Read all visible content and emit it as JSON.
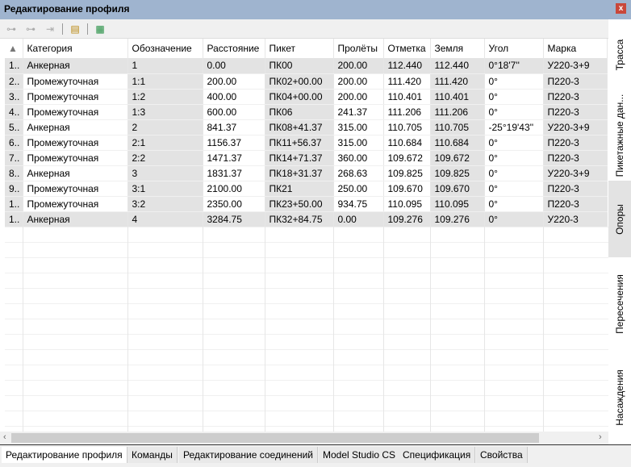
{
  "window": {
    "title": "Редактирование профиля",
    "close_label": "x"
  },
  "toolbar": {
    "icons": [
      "add-branch-icon",
      "insert-branch-icon",
      "remove-branch-icon",
      "properties-icon",
      "refresh-table-icon"
    ]
  },
  "table": {
    "sort_indicator": "▲",
    "columns": [
      "Категория",
      "Обозначение",
      "Расстояние",
      "Пикет",
      "Пролёты",
      "Отметка",
      "Земля",
      "Угол",
      "Марка"
    ],
    "rows": [
      [
        "1..",
        "Анкерная",
        "1",
        "0.00",
        "ПК00",
        "200.00",
        "112.440",
        "112.440",
        "0°18'7''",
        "У220-3+9"
      ],
      [
        "2..",
        "Промежуточная",
        "1:1",
        "200.00",
        "ПК02+00.00",
        "200.00",
        "111.420",
        "111.420",
        "0°",
        "П220-3"
      ],
      [
        "3..",
        "Промежуточная",
        "1:2",
        "400.00",
        "ПК04+00.00",
        "200.00",
        "110.401",
        "110.401",
        "0°",
        "П220-3"
      ],
      [
        "4..",
        "Промежуточная",
        "1:3",
        "600.00",
        "ПК06",
        "241.37",
        "111.206",
        "111.206",
        "0°",
        "П220-3"
      ],
      [
        "5..",
        "Анкерная",
        "2",
        "841.37",
        "ПК08+41.37",
        "315.00",
        "110.705",
        "110.705",
        "-25°19'43''",
        "У220-3+9"
      ],
      [
        "6..",
        "Промежуточная",
        "2:1",
        "1156.37",
        "ПК11+56.37",
        "315.00",
        "110.684",
        "110.684",
        "0°",
        "П220-3"
      ],
      [
        "7..",
        "Промежуточная",
        "2:2",
        "1471.37",
        "ПК14+71.37",
        "360.00",
        "109.672",
        "109.672",
        "0°",
        "П220-3"
      ],
      [
        "8..",
        "Анкерная",
        "3",
        "1831.37",
        "ПК18+31.37",
        "268.63",
        "109.825",
        "109.825",
        "0°",
        "У220-3+9"
      ],
      [
        "9..",
        "Промежуточная",
        "3:1",
        "2100.00",
        "ПК21",
        "250.00",
        "109.670",
        "109.670",
        "0°",
        "П220-3"
      ],
      [
        "1..",
        "Промежуточная",
        "3:2",
        "2350.00",
        "ПК23+50.00",
        "934.75",
        "110.095",
        "110.095",
        "0°",
        "П220-3"
      ],
      [
        "1..",
        "Анкерная",
        "4",
        "3284.75",
        "ПК32+84.75",
        "0.00",
        "109.276",
        "109.276",
        "0°",
        "У220-3"
      ]
    ]
  },
  "side_tabs": [
    "Трасса",
    "Пикетажные дан...",
    "Опоры",
    "Пересечения",
    "Насаждения"
  ],
  "side_active": "Опоры",
  "bottom_tabs": [
    "Редактирование профиля",
    "Команды",
    "Редактирование соединений",
    "Model Studio CS",
    "Спецификация",
    "Свойства"
  ],
  "bottom_active": "Редактирование профиля",
  "scroll": {
    "left": "‹",
    "right": "›"
  }
}
